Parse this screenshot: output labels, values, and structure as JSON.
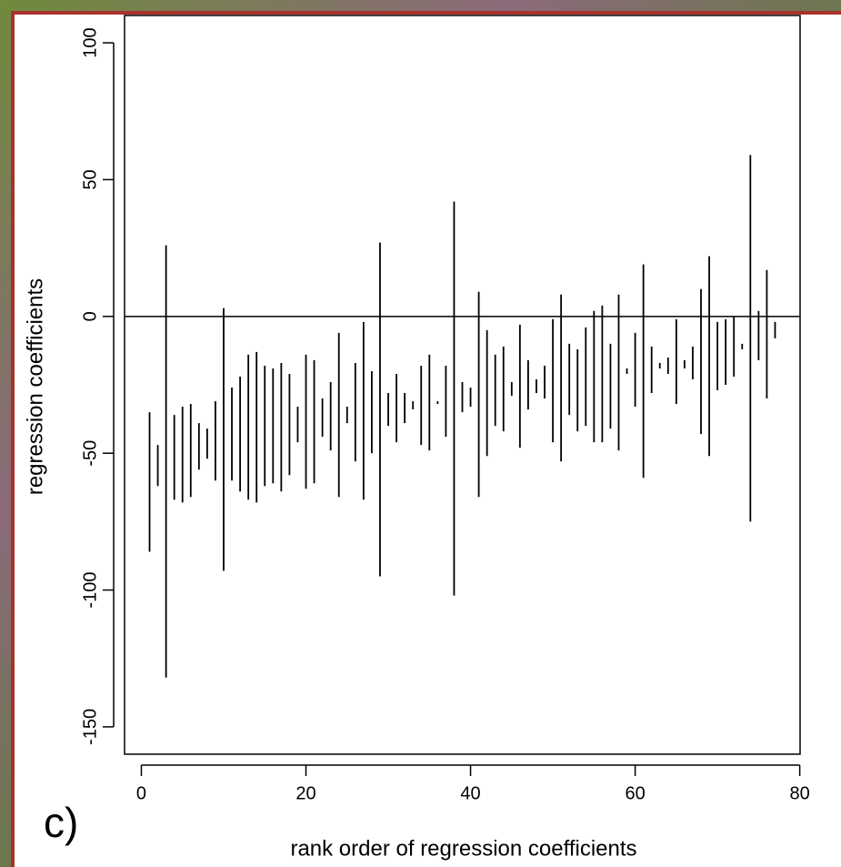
{
  "chart_data": {
    "type": "interval",
    "y_label": "regression coefficients",
    "x_label": "rank order of regression coefficients",
    "annotation": "c)",
    "x": [
      1,
      2,
      3,
      4,
      5,
      6,
      7,
      8,
      9,
      10,
      11,
      12,
      13,
      14,
      15,
      16,
      17,
      18,
      19,
      20,
      21,
      22,
      23,
      24,
      25,
      26,
      27,
      28,
      29,
      30,
      31,
      32,
      33,
      34,
      35,
      36,
      37,
      38,
      39,
      40,
      41,
      42,
      43,
      44,
      45,
      46,
      47,
      48,
      49,
      50,
      51,
      52,
      53,
      54,
      55,
      56,
      57,
      58,
      59,
      60,
      61,
      62,
      63,
      64,
      65,
      66,
      67,
      68,
      69,
      70,
      71,
      72,
      73,
      74,
      75,
      76,
      77
    ],
    "upper": [
      -35,
      -47,
      26,
      -36,
      -33,
      -32,
      -39,
      -41,
      -31,
      3,
      -26,
      -22,
      -14,
      -13,
      -18,
      -19,
      -17,
      -21,
      -33,
      -14,
      -16,
      -30,
      -24,
      -6,
      -33,
      -17,
      -2,
      -20,
      27,
      -28,
      -21,
      -28,
      -31,
      -18,
      -14,
      -31,
      -18,
      42,
      -24,
      -26,
      9,
      -5,
      -14,
      -11,
      -24,
      -3,
      -16,
      -23,
      -18,
      -1,
      8,
      -10,
      -12,
      -4,
      2,
      4,
      -10,
      8,
      -19,
      -6,
      19,
      -11,
      -17,
      -15,
      -1,
      -16,
      -11,
      10,
      22,
      -2,
      -1,
      0,
      -10,
      59,
      2,
      17,
      -2
    ],
    "lower": [
      -86,
      -62,
      -132,
      -67,
      -68,
      -66,
      -56,
      -52,
      -60,
      -93,
      -60,
      -64,
      -67,
      -68,
      -62,
      -61,
      -64,
      -58,
      -46,
      -63,
      -61,
      -44,
      -49,
      -66,
      -39,
      -53,
      -67,
      -50,
      -95,
      -40,
      -46,
      -39,
      -34,
      -47,
      -49,
      -32,
      -44,
      -102,
      -35,
      -33,
      -66,
      -51,
      -40,
      -42,
      -29,
      -48,
      -34,
      -28,
      -30,
      -46,
      -53,
      -36,
      -42,
      -40,
      -46,
      -46,
      -41,
      -49,
      -21,
      -33,
      -59,
      -28,
      -19,
      -21,
      -32,
      -19,
      -23,
      -43,
      -51,
      -27,
      -25,
      -22,
      -12,
      -75,
      -16,
      -30,
      -8
    ],
    "color": "#000000",
    "hline": 0,
    "xlim": [
      -2.04,
      80.04
    ],
    "ylim": [
      -160,
      110
    ],
    "xticks": [
      0,
      20,
      40,
      60,
      80
    ],
    "yticks": [
      -150,
      -100,
      -50,
      0,
      50,
      100
    ]
  }
}
